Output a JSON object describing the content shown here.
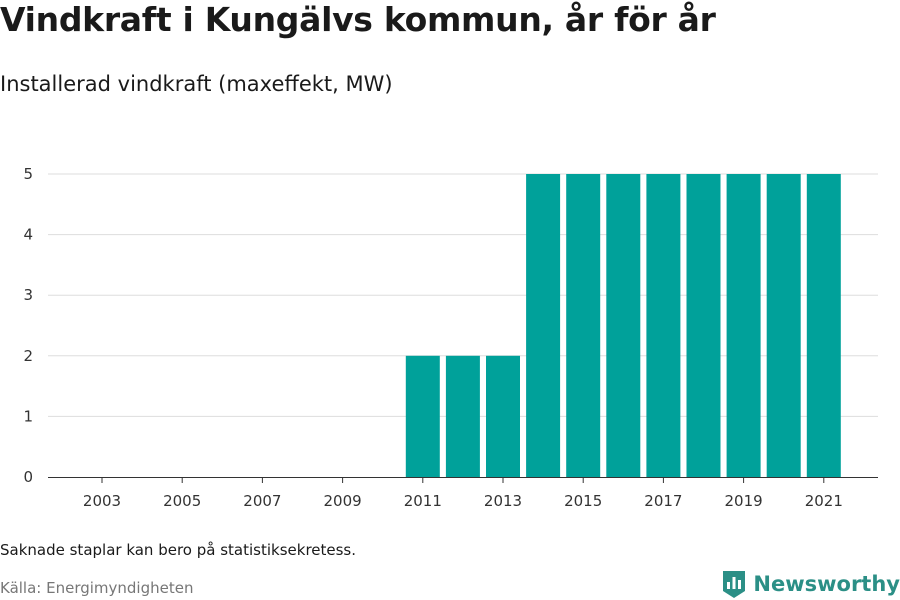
{
  "header": {
    "title": "Vindkraft i Kungälvs kommun, år för år",
    "subtitle": "Installerad vindkraft (maxeffekt, MW)"
  },
  "footer": {
    "note": "Saknade staplar kan bero på statistiksekretess.",
    "source": "Källa: Energimyndigheten",
    "brand": "Newsworthy"
  },
  "colors": {
    "bar": "#00a19a",
    "grid": "#dddddd",
    "axis": "#333333",
    "brand": "#2b8f86"
  },
  "icons": {
    "brand_logo": "bar-chart-badge-icon"
  },
  "chart_data": {
    "type": "bar",
    "title": "Vindkraft i Kungälvs kommun, år för år",
    "subtitle": "Installerad vindkraft (maxeffekt, MW)",
    "xlabel": "",
    "ylabel": "",
    "categories": [
      "2003",
      "2004",
      "2005",
      "2006",
      "2007",
      "2008",
      "2009",
      "2010",
      "2011",
      "2012",
      "2013",
      "2014",
      "2015",
      "2016",
      "2017",
      "2018",
      "2019",
      "2020",
      "2021"
    ],
    "values": [
      0,
      0,
      0,
      0,
      0,
      0,
      0,
      0,
      2,
      2,
      2,
      5,
      5,
      5,
      5,
      5,
      5,
      5,
      5
    ],
    "x_tick_labels": [
      "2003",
      "2005",
      "2007",
      "2009",
      "2011",
      "2013",
      "2015",
      "2017",
      "2019",
      "2021"
    ],
    "y_ticks": [
      0,
      1,
      2,
      3,
      4,
      5
    ],
    "ylim": [
      0,
      5
    ],
    "grid": true,
    "legend": "none"
  }
}
